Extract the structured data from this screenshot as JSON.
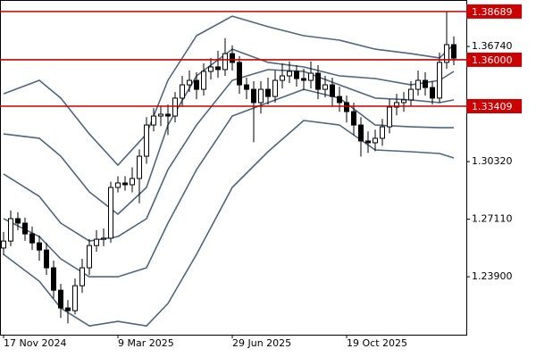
{
  "chart_data": {
    "type": "candlestick",
    "categories": [
      "17 Nov 2024",
      null,
      null,
      null,
      null,
      null,
      null,
      null,
      null,
      null,
      null,
      null,
      null,
      null,
      null,
      null,
      "9 Mar 2025",
      null,
      null,
      null,
      null,
      null,
      null,
      null,
      null,
      null,
      null,
      null,
      null,
      null,
      null,
      null,
      "29 Jun 2025",
      null,
      null,
      null,
      null,
      null,
      null,
      null,
      null,
      null,
      null,
      null,
      null,
      null,
      null,
      null,
      "19 Oct 2025",
      null,
      null,
      null,
      null,
      null,
      null,
      null,
      null,
      null,
      null,
      null,
      null,
      null,
      null,
      null
    ],
    "open": [
      1.255,
      1.2589,
      1.2714,
      1.2689,
      1.2629,
      1.2579,
      1.2539,
      1.244,
      1.2315,
      1.2216,
      1.2201,
      1.234,
      1.244,
      1.2564,
      1.2599,
      1.2605,
      1.2888,
      1.2913,
      1.2903,
      1.2938,
      1.3062,
      1.3236,
      1.3286,
      1.3296,
      1.3286,
      1.3386,
      1.346,
      1.3485,
      1.3435,
      1.3535,
      1.356,
      1.3545,
      1.3634,
      1.3585,
      1.346,
      1.3435,
      1.3361,
      1.3435,
      1.3395,
      1.3485,
      1.351,
      1.3535,
      1.3495,
      1.3485,
      1.3525,
      1.3435,
      1.346,
      1.3395,
      1.3361,
      1.3311,
      1.3236,
      1.3147,
      1.3137,
      1.3162,
      1.3226,
      1.3336,
      1.3361,
      1.3376,
      1.3435,
      1.3485,
      1.3445,
      1.3386,
      1.3585,
      1.3684
    ],
    "high": [
      1.264,
      1.276,
      1.275,
      1.272,
      1.267,
      1.262,
      1.258,
      1.248,
      1.235,
      1.226,
      1.238,
      1.249,
      1.26,
      1.265,
      1.266,
      1.292,
      1.295,
      1.295,
      1.3,
      1.31,
      1.328,
      1.333,
      1.334,
      1.335,
      1.342,
      1.351,
      1.354,
      1.353,
      1.358,
      1.361,
      1.365,
      1.372,
      1.368,
      1.362,
      1.35,
      1.348,
      1.348,
      1.35,
      1.354,
      1.358,
      1.359,
      1.357,
      1.355,
      1.359,
      1.357,
      1.351,
      1.35,
      1.345,
      1.34,
      1.336,
      1.328,
      1.32,
      1.321,
      1.327,
      1.338,
      1.341,
      1.342,
      1.348,
      1.354,
      1.353,
      1.348,
      1.364,
      1.3869,
      1.373
    ],
    "low": [
      1.251,
      1.256,
      1.265,
      1.259,
      1.254,
      1.248,
      1.24,
      1.227,
      1.216,
      1.213,
      1.218,
      1.23,
      1.24,
      1.253,
      1.256,
      1.258,
      1.286,
      1.287,
      1.286,
      1.28,
      1.302,
      1.32,
      1.323,
      1.318,
      1.325,
      1.334,
      1.342,
      1.338,
      1.34,
      1.349,
      1.35,
      1.351,
      1.354,
      1.341,
      1.338,
      1.314,
      1.33,
      1.335,
      1.336,
      1.344,
      1.347,
      1.345,
      1.343,
      1.344,
      1.338,
      1.339,
      1.334,
      1.331,
      1.325,
      1.318,
      1.306,
      1.308,
      1.309,
      1.312,
      1.319,
      1.329,
      1.331,
      1.334,
      1.34,
      1.34,
      1.335,
      1.336,
      1.355,
      1.357
    ],
    "close": [
      1.2589,
      1.2714,
      1.2689,
      1.2629,
      1.2579,
      1.2539,
      1.244,
      1.2315,
      1.2216,
      1.2201,
      1.234,
      1.244,
      1.2564,
      1.2599,
      1.2605,
      1.2888,
      1.2913,
      1.2903,
      1.2938,
      1.3062,
      1.3236,
      1.3286,
      1.3296,
      1.3286,
      1.3386,
      1.346,
      1.3485,
      1.3435,
      1.3535,
      1.356,
      1.3545,
      1.3634,
      1.3585,
      1.346,
      1.3435,
      1.3361,
      1.3435,
      1.3395,
      1.3485,
      1.351,
      1.3535,
      1.3495,
      1.3485,
      1.3525,
      1.3435,
      1.346,
      1.3395,
      1.3361,
      1.3311,
      1.3236,
      1.3147,
      1.3137,
      1.3162,
      1.3226,
      1.3336,
      1.3361,
      1.3376,
      1.3435,
      1.3485,
      1.3445,
      1.3386,
      1.3585,
      1.3684,
      1.3609
    ],
    "bands": {
      "x": [
        0,
        5,
        8,
        12,
        16,
        20,
        23,
        27,
        32,
        37,
        42,
        47,
        52,
        57,
        61,
        63
      ],
      "color": "#4d6780",
      "series": [
        {
          "values": [
            1.341,
            1.3485,
            1.3386,
            1.3186,
            1.3012,
            1.3186,
            1.3485,
            1.3734,
            1.3843,
            1.3784,
            1.3734,
            1.3709,
            1.3659,
            1.3634,
            1.361,
            1.3684
          ]
        },
        {
          "values": [
            1.3186,
            1.3162,
            1.3062,
            1.2863,
            1.2739,
            1.2888,
            1.3236,
            1.351,
            1.3659,
            1.3585,
            1.356,
            1.351,
            1.3495,
            1.346,
            1.3485,
            1.3535
          ]
        },
        {
          "values": [
            1.2963,
            1.2838,
            1.2689,
            1.2589,
            1.2614,
            1.2714,
            1.2987,
            1.3236,
            1.3485,
            1.3545,
            1.3535,
            1.346,
            1.3386,
            1.3376,
            1.3361,
            1.3376
          ]
        },
        {
          "values": [
            1.2714,
            1.2614,
            1.249,
            1.239,
            1.239,
            1.244,
            1.2689,
            1.2987,
            1.3286,
            1.3361,
            1.3435,
            1.3386,
            1.3236,
            1.3226,
            1.3221,
            1.3221
          ]
        },
        {
          "values": [
            1.2515,
            1.2365,
            1.2216,
            1.2116,
            1.2141,
            1.2116,
            1.2241,
            1.2515,
            1.2888,
            1.3087,
            1.3261,
            1.3236,
            1.3097,
            1.3087,
            1.3077,
            1.3052
          ]
        }
      ]
    },
    "levels": [
      1.38689,
      {
        "value": 1.36,
        "label": "1.36000"
      },
      1.33409
    ],
    "level_color": "#cc0000",
    "ylim": [
      1.2067,
      1.3933
    ],
    "yticks": [
      {
        "value": 1.3674,
        "label": "1.36740"
      },
      {
        "value": 1.3032,
        "label": "1.30320"
      },
      {
        "value": 1.2711,
        "label": "1.27110"
      },
      {
        "value": 1.239,
        "label": "1.23900"
      }
    ]
  }
}
